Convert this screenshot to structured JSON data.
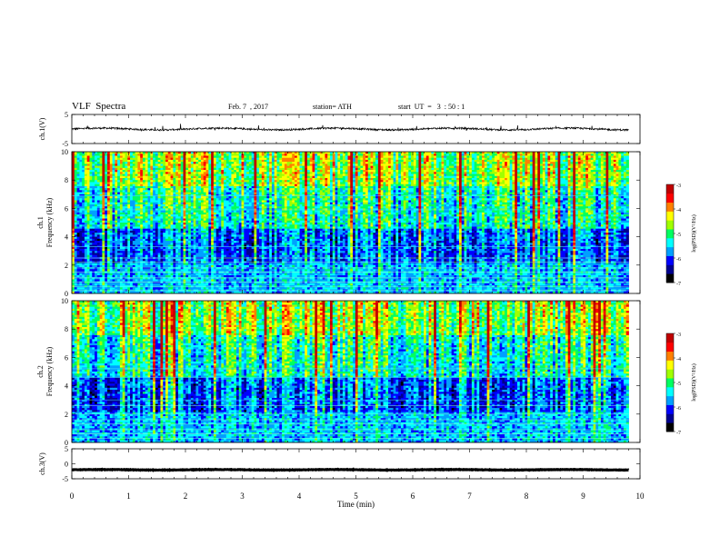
{
  "header": {
    "title": "VLF  Spectra",
    "date": "Feb. 7  , 2017",
    "station": "station= ATH",
    "start": "start  UT  =   3  : 50 : 1"
  },
  "chart_data": [
    {
      "type": "line",
      "name": "ch1-waveform",
      "ylabel": "ch.1(V)",
      "xlim": [
        0,
        10
      ],
      "ylim": [
        -5,
        5
      ],
      "yticks": [
        "5",
        "-5"
      ],
      "baseline": 0,
      "amplitude": 0.6,
      "data_end_min": 9.8,
      "color": "#000000"
    },
    {
      "type": "heatmap",
      "name": "ch1-spectrogram",
      "ylabel_lines": [
        "ch.1",
        "Frequency  (kHz)"
      ],
      "xlim": [
        0,
        10
      ],
      "ylim": [
        0,
        10
      ],
      "yticks": [
        "0",
        "2",
        "4",
        "6",
        "8",
        "10"
      ],
      "data_end_min": 9.8,
      "colorbar": {
        "label": "log(PSD)(V²/Hz)",
        "range": [
          -7,
          -3
        ],
        "ticks": [
          "-3",
          "-4",
          "-5",
          "-6",
          "-7"
        ],
        "colors": [
          "#000000",
          "#000090",
          "#0000ff",
          "#00a0ff",
          "#00ffff",
          "#00ff60",
          "#a0ff00",
          "#ffff00",
          "#ff8000",
          "#ff0000",
          "#c00000"
        ]
      }
    },
    {
      "type": "heatmap",
      "name": "ch2-spectrogram",
      "ylabel_lines": [
        "ch.2",
        "Frequency  (kHz)"
      ],
      "xlim": [
        0,
        10
      ],
      "ylim": [
        0,
        10
      ],
      "yticks": [
        "0",
        "2",
        "4",
        "6",
        "8",
        "10"
      ],
      "data_end_min": 9.8,
      "colorbar": {
        "label": "log(PSD)(V²/Hz)",
        "range": [
          -7,
          -3
        ],
        "ticks": [
          "-3",
          "-4",
          "-5",
          "-6",
          "-7"
        ],
        "colors": [
          "#000000",
          "#000090",
          "#0000ff",
          "#00a0ff",
          "#00ffff",
          "#00ff60",
          "#a0ff00",
          "#ffff00",
          "#ff8000",
          "#ff0000",
          "#c00000"
        ]
      }
    },
    {
      "type": "line",
      "name": "ch3-waveform",
      "ylabel": "ch.3(V)",
      "xlim": [
        0,
        10
      ],
      "ylim": [
        -5,
        5
      ],
      "yticks": [
        "5",
        "0",
        "-5"
      ],
      "baseline": -2,
      "amplitude": 0.15,
      "data_end_min": 9.8,
      "color": "#000000"
    }
  ],
  "xaxis": {
    "label": "Time  (min)",
    "ticks": [
      "0",
      "1",
      "2",
      "3",
      "4",
      "5",
      "6",
      "7",
      "8",
      "9",
      "10"
    ]
  }
}
